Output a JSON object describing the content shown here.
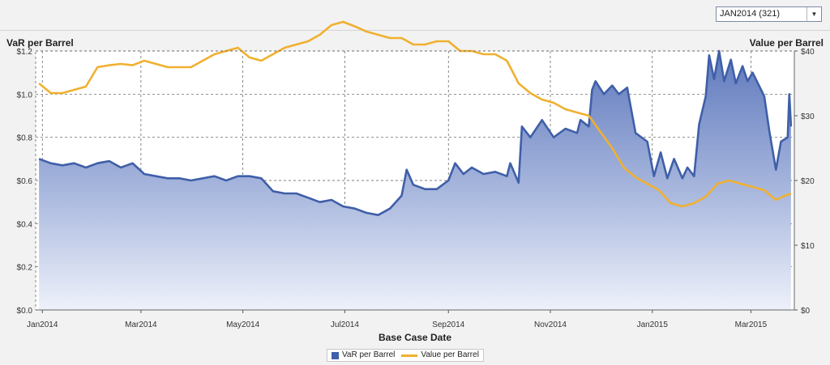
{
  "selector": {
    "value": "JAN2014 (321)"
  },
  "chart_data": {
    "type": "line",
    "xlabel": "Base Case Date",
    "ylabel_left": "VaR per Barrel",
    "ylabel_right": "Value per Barrel",
    "x_ticks": [
      "Jan2014",
      "Mar2014",
      "May2014",
      "Jul2014",
      "Sep2014",
      "Nov2014",
      "Jan2015",
      "Mar2015"
    ],
    "x_tick_dates": [
      "2014-01-01",
      "2014-03-01",
      "2014-05-01",
      "2014-07-01",
      "2014-09-01",
      "2014-11-01",
      "2015-01-01",
      "2015-03-01"
    ],
    "y_left_ticks": [
      "$0.0",
      "$0.2",
      "$0.4",
      "$0.6",
      "$0.8",
      "$1.0",
      "$1.2"
    ],
    "y_right_ticks": [
      "$0",
      "$10",
      "$20",
      "$30",
      "$40"
    ],
    "ylim_left": [
      0,
      1.2
    ],
    "ylim_right": [
      0,
      40
    ],
    "grid": true,
    "legend_position": "bottom",
    "series": [
      {
        "name": "VaR per Barrel",
        "axis": "left",
        "style": "area",
        "color": "#3f5fa8",
        "points": [
          [
            "2013-12-30",
            0.7
          ],
          [
            "2014-01-06",
            0.68
          ],
          [
            "2014-01-13",
            0.67
          ],
          [
            "2014-01-20",
            0.68
          ],
          [
            "2014-01-27",
            0.66
          ],
          [
            "2014-02-03",
            0.68
          ],
          [
            "2014-02-10",
            0.69
          ],
          [
            "2014-02-17",
            0.66
          ],
          [
            "2014-02-24",
            0.68
          ],
          [
            "2014-03-03",
            0.63
          ],
          [
            "2014-03-10",
            0.62
          ],
          [
            "2014-03-17",
            0.61
          ],
          [
            "2014-03-24",
            0.61
          ],
          [
            "2014-03-31",
            0.6
          ],
          [
            "2014-04-07",
            0.61
          ],
          [
            "2014-04-14",
            0.62
          ],
          [
            "2014-04-21",
            0.6
          ],
          [
            "2014-04-28",
            0.62
          ],
          [
            "2014-05-05",
            0.62
          ],
          [
            "2014-05-12",
            0.61
          ],
          [
            "2014-05-19",
            0.55
          ],
          [
            "2014-05-26",
            0.54
          ],
          [
            "2014-06-02",
            0.54
          ],
          [
            "2014-06-09",
            0.52
          ],
          [
            "2014-06-16",
            0.5
          ],
          [
            "2014-06-23",
            0.51
          ],
          [
            "2014-06-30",
            0.48
          ],
          [
            "2014-07-07",
            0.47
          ],
          [
            "2014-07-14",
            0.45
          ],
          [
            "2014-07-21",
            0.44
          ],
          [
            "2014-07-28",
            0.47
          ],
          [
            "2014-08-04",
            0.53
          ],
          [
            "2014-08-07",
            0.65
          ],
          [
            "2014-08-11",
            0.58
          ],
          [
            "2014-08-18",
            0.56
          ],
          [
            "2014-08-25",
            0.56
          ],
          [
            "2014-09-01",
            0.6
          ],
          [
            "2014-09-05",
            0.68
          ],
          [
            "2014-09-10",
            0.63
          ],
          [
            "2014-09-15",
            0.66
          ],
          [
            "2014-09-22",
            0.63
          ],
          [
            "2014-09-29",
            0.64
          ],
          [
            "2014-10-06",
            0.62
          ],
          [
            "2014-10-08",
            0.68
          ],
          [
            "2014-10-13",
            0.59
          ],
          [
            "2014-10-15",
            0.85
          ],
          [
            "2014-10-20",
            0.8
          ],
          [
            "2014-10-27",
            0.88
          ],
          [
            "2014-11-03",
            0.8
          ],
          [
            "2014-11-10",
            0.84
          ],
          [
            "2014-11-17",
            0.82
          ],
          [
            "2014-11-19",
            0.88
          ],
          [
            "2014-11-24",
            0.85
          ],
          [
            "2014-11-26",
            1.02
          ],
          [
            "2014-11-28",
            1.06
          ],
          [
            "2014-12-03",
            1.0
          ],
          [
            "2014-12-08",
            1.04
          ],
          [
            "2014-12-12",
            1.0
          ],
          [
            "2014-12-17",
            1.03
          ],
          [
            "2014-12-22",
            0.82
          ],
          [
            "2014-12-29",
            0.78
          ],
          [
            "2015-01-02",
            0.62
          ],
          [
            "2015-01-06",
            0.73
          ],
          [
            "2015-01-10",
            0.61
          ],
          [
            "2015-01-14",
            0.7
          ],
          [
            "2015-01-19",
            0.61
          ],
          [
            "2015-01-22",
            0.66
          ],
          [
            "2015-01-26",
            0.62
          ],
          [
            "2015-01-29",
            0.86
          ],
          [
            "2015-02-02",
            0.99
          ],
          [
            "2015-02-04",
            1.18
          ],
          [
            "2015-02-07",
            1.07
          ],
          [
            "2015-02-10",
            1.2
          ],
          [
            "2015-02-13",
            1.06
          ],
          [
            "2015-02-17",
            1.16
          ],
          [
            "2015-02-20",
            1.05
          ],
          [
            "2015-02-24",
            1.13
          ],
          [
            "2015-02-27",
            1.06
          ],
          [
            "2015-03-02",
            1.1
          ],
          [
            "2015-03-09",
            0.99
          ],
          [
            "2015-03-12",
            0.83
          ],
          [
            "2015-03-16",
            0.65
          ],
          [
            "2015-03-19",
            0.78
          ],
          [
            "2015-03-23",
            0.8
          ],
          [
            "2015-03-24",
            1.0
          ],
          [
            "2015-03-25",
            0.85
          ]
        ]
      },
      {
        "name": "Value per Barrel",
        "axis": "right",
        "style": "line",
        "color": "#f0b030",
        "points": [
          [
            "2013-12-30",
            35.0
          ],
          [
            "2014-01-06",
            33.5
          ],
          [
            "2014-01-13",
            33.5
          ],
          [
            "2014-01-20",
            34.0
          ],
          [
            "2014-01-27",
            34.5
          ],
          [
            "2014-02-03",
            37.5
          ],
          [
            "2014-02-10",
            37.8
          ],
          [
            "2014-02-17",
            38.0
          ],
          [
            "2014-02-24",
            37.8
          ],
          [
            "2014-03-03",
            38.5
          ],
          [
            "2014-03-10",
            38.0
          ],
          [
            "2014-03-17",
            37.5
          ],
          [
            "2014-03-24",
            37.5
          ],
          [
            "2014-03-31",
            37.5
          ],
          [
            "2014-04-07",
            38.5
          ],
          [
            "2014-04-14",
            39.5
          ],
          [
            "2014-04-21",
            40.0
          ],
          [
            "2014-04-28",
            40.5
          ],
          [
            "2014-05-05",
            39.0
          ],
          [
            "2014-05-12",
            38.5
          ],
          [
            "2014-05-19",
            39.5
          ],
          [
            "2014-05-26",
            40.5
          ],
          [
            "2014-06-02",
            41.0
          ],
          [
            "2014-06-09",
            41.5
          ],
          [
            "2014-06-16",
            42.5
          ],
          [
            "2014-06-23",
            44.0
          ],
          [
            "2014-06-30",
            44.5
          ],
          [
            "2014-07-07",
            43.8
          ],
          [
            "2014-07-14",
            43.0
          ],
          [
            "2014-07-21",
            42.5
          ],
          [
            "2014-07-28",
            42.0
          ],
          [
            "2014-08-04",
            42.0
          ],
          [
            "2014-08-11",
            41.0
          ],
          [
            "2014-08-18",
            41.0
          ],
          [
            "2014-08-25",
            41.5
          ],
          [
            "2014-09-01",
            41.5
          ],
          [
            "2014-09-08",
            40.0
          ],
          [
            "2014-09-15",
            40.0
          ],
          [
            "2014-09-22",
            39.5
          ],
          [
            "2014-09-29",
            39.5
          ],
          [
            "2014-10-06",
            38.5
          ],
          [
            "2014-10-13",
            35.0
          ],
          [
            "2014-10-20",
            33.5
          ],
          [
            "2014-10-27",
            32.5
          ],
          [
            "2014-11-03",
            32.0
          ],
          [
            "2014-11-10",
            31.0
          ],
          [
            "2014-11-17",
            30.5
          ],
          [
            "2014-11-24",
            30.0
          ],
          [
            "2014-12-01",
            27.5
          ],
          [
            "2014-12-08",
            25.0
          ],
          [
            "2014-12-15",
            22.0
          ],
          [
            "2014-12-22",
            20.5
          ],
          [
            "2014-12-29",
            19.5
          ],
          [
            "2015-01-05",
            18.5
          ],
          [
            "2015-01-12",
            16.5
          ],
          [
            "2015-01-19",
            16.0
          ],
          [
            "2015-01-26",
            16.5
          ],
          [
            "2015-02-02",
            17.5
          ],
          [
            "2015-02-09",
            19.5
          ],
          [
            "2015-02-16",
            20.0
          ],
          [
            "2015-02-23",
            19.5
          ],
          [
            "2015-03-02",
            19.0
          ],
          [
            "2015-03-09",
            18.5
          ],
          [
            "2015-03-16",
            17.0
          ],
          [
            "2015-03-20",
            17.5
          ],
          [
            "2015-03-25",
            18.0
          ]
        ]
      }
    ]
  }
}
